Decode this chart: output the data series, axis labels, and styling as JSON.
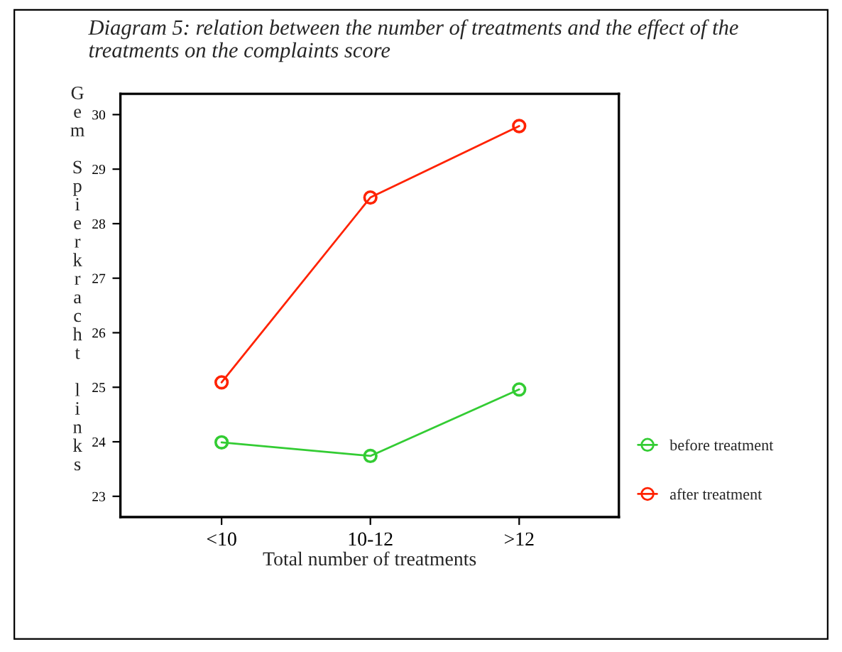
{
  "chart_data": {
    "type": "line",
    "title": "Diagram 5: relation between the number of treatments and the effect of the treatments on the complaints score",
    "xlabel": "Total number of treatments",
    "ylabel": "Gem Spierkracht links",
    "categories": [
      "<10",
      "10-12",
      ">12"
    ],
    "series": [
      {
        "name": "before treatment",
        "color": "#33cc33",
        "values": [
          23.99,
          23.74,
          24.96
        ]
      },
      {
        "name": "after treatment",
        "color": "#ff2200",
        "values": [
          25.09,
          28.48,
          29.79
        ]
      }
    ],
    "ylim": [
      22.62,
      30.38
    ],
    "yticks": [
      23,
      24,
      25,
      26,
      27,
      28,
      29,
      30
    ],
    "marker": "circle",
    "line_style": "solid",
    "grid": false,
    "legend": "right"
  }
}
